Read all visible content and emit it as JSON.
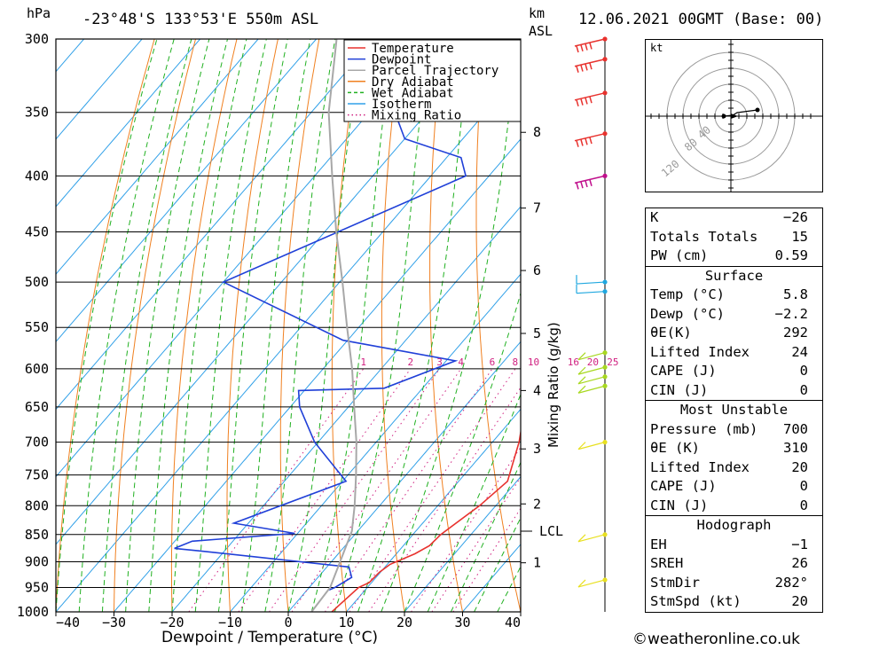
{
  "header": {
    "pressure_unit": "hPa",
    "location": "-23°48'S 133°53'E 550m ASL",
    "height_unit_line1": "km",
    "height_unit_line2": "ASL",
    "datetime": "12.06.2021 00GMT (Base: 00)"
  },
  "chart_data": {
    "type": "line",
    "title": "",
    "xlabel": "Dewpoint / Temperature (°C)",
    "ylabel": "hPa",
    "x_ticks": [
      -40,
      -30,
      -20,
      -10,
      0,
      10,
      20,
      30,
      40
    ],
    "pressure_ticks": [
      300,
      350,
      400,
      450,
      500,
      550,
      600,
      650,
      700,
      750,
      800,
      850,
      900,
      950,
      1000
    ],
    "height_ticks_km": [
      {
        "label": "8",
        "p": 365
      },
      {
        "label": "7",
        "p": 428
      },
      {
        "label": "6",
        "p": 488
      },
      {
        "label": "5",
        "p": 557
      },
      {
        "label": "4",
        "p": 628
      },
      {
        "label": "3",
        "p": 710
      },
      {
        "label": "2",
        "p": 797
      },
      {
        "label": "1",
        "p": 902
      }
    ],
    "lcl_label": "LCL",
    "lcl_pressure": 844,
    "mixing_ratio_axis_label": "Mixing Ratio (g/kg)",
    "mixing_ratio_values": [
      "1",
      "2",
      "3",
      "4",
      "6",
      "8",
      "10",
      "16",
      "20",
      "25"
    ],
    "legend": {
      "position": "top-right",
      "entries": [
        {
          "name": "Temperature",
          "color": "#e8322e",
          "style": "solid"
        },
        {
          "name": "Dewpoint",
          "color": "#2040d8",
          "style": "solid"
        },
        {
          "name": "Parcel Trajectory",
          "color": "#a8a8a8",
          "style": "solid"
        },
        {
          "name": "Dry Adiabat",
          "color": "#f08020",
          "style": "solid"
        },
        {
          "name": "Wet Adiabat",
          "color": "#20b020",
          "style": "dashed"
        },
        {
          "name": "Isotherm",
          "color": "#30a0e8",
          "style": "solid"
        },
        {
          "name": "Mixing Ratio",
          "color": "#d02080",
          "style": "dotted"
        }
      ]
    },
    "series": [
      {
        "name": "Temperature",
        "color": "#e8322e",
        "points": [
          [
            1000,
            7.5
          ],
          [
            950,
            8.5
          ],
          [
            940,
            9.6
          ],
          [
            920,
            9.8
          ],
          [
            905,
            10.5
          ],
          [
            885,
            13.2
          ],
          [
            870,
            14.5
          ],
          [
            850,
            14.8
          ],
          [
            800,
            17.2
          ],
          [
            760,
            18.4
          ],
          [
            700,
            14.6
          ],
          [
            650,
            10.4
          ],
          [
            610,
            6.8
          ],
          [
            580,
            5.8
          ],
          [
            560,
            5.8
          ],
          [
            500,
            -0.4
          ],
          [
            450,
            -7.4
          ],
          [
            400,
            -16.2
          ],
          [
            385,
            -16.8
          ],
          [
            375,
            -18.5
          ],
          [
            350,
            -22.5
          ],
          [
            300,
            -32.0
          ]
        ]
      },
      {
        "name": "Dewpoint",
        "color": "#2040d8",
        "points": [
          [
            955,
            3.8
          ],
          [
            950,
            4.4
          ],
          [
            930,
            5.8
          ],
          [
            910,
            3.8
          ],
          [
            880,
            -24.0
          ],
          [
            875,
            -29.0
          ],
          [
            862,
            -27.0
          ],
          [
            848,
            -10.5
          ],
          [
            830,
            -22.5
          ],
          [
            760,
            -9.4
          ],
          [
            700,
            -20.6
          ],
          [
            650,
            -28.4
          ],
          [
            628,
            -31.0
          ],
          [
            625,
            -16.6
          ],
          [
            590,
            -8.4
          ],
          [
            565,
            -30.8
          ],
          [
            500,
            -60.0
          ],
          [
            400,
            -34.0
          ],
          [
            385,
            -37.5
          ],
          [
            370,
            -50.0
          ],
          [
            350,
            -55.6
          ],
          [
            300,
            -64.5
          ]
        ]
      },
      {
        "name": "Parcel Trajectory",
        "color": "#a8a8a8",
        "points": [
          [
            1000,
            4.0
          ],
          [
            950,
            3.6
          ],
          [
            900,
            1.5
          ],
          [
            844,
            -1.0
          ],
          [
            800,
            -4.3
          ],
          [
            750,
            -8.6
          ],
          [
            700,
            -13.4
          ],
          [
            650,
            -19.0
          ],
          [
            600,
            -25.0
          ],
          [
            550,
            -32.0
          ],
          [
            500,
            -39.5
          ],
          [
            450,
            -48.0
          ],
          [
            400,
            -57.0
          ],
          [
            350,
            -67.0
          ],
          [
            300,
            -76.5
          ]
        ]
      }
    ],
    "wind_barbs": [
      {
        "p": 300,
        "color": "#e8322e"
      },
      {
        "p": 313,
        "color": "#e8322e"
      },
      {
        "p": 336,
        "color": "#e8322e"
      },
      {
        "p": 366,
        "color": "#e8322e"
      },
      {
        "p": 400,
        "color": "#c0108c"
      },
      {
        "p": 500,
        "color": "#20a8e0"
      },
      {
        "p": 510,
        "color": "#20a8e0"
      },
      {
        "p": 580,
        "color": "#a8d820"
      },
      {
        "p": 598,
        "color": "#a8d820"
      },
      {
        "p": 610,
        "color": "#a8d820"
      },
      {
        "p": 622,
        "color": "#a8d820"
      },
      {
        "p": 700,
        "color": "#e8e020"
      },
      {
        "p": 850,
        "color": "#e8e020"
      },
      {
        "p": 935,
        "color": "#e8e020"
      }
    ]
  },
  "hodograph": {
    "unit": "kt",
    "ring_labels": [
      "40",
      "80",
      "120"
    ]
  },
  "indices": {
    "rows": [
      {
        "label": "K",
        "value": "-26"
      },
      {
        "label": "Totals Totals",
        "value": "15"
      },
      {
        "label": "PW (cm)",
        "value": "0.59"
      }
    ]
  },
  "surface": {
    "title": "Surface",
    "rows": [
      {
        "label": "Temp (°C)",
        "value": "5.8"
      },
      {
        "label": "Dewp (°C)",
        "value": "-2.2"
      },
      {
        "label": "θE(K)",
        "value": "292"
      },
      {
        "label": "Lifted Index",
        "value": "24"
      },
      {
        "label": "CAPE (J)",
        "value": "0"
      },
      {
        "label": "CIN (J)",
        "value": "0"
      }
    ]
  },
  "most_unstable": {
    "title": "Most Unstable",
    "rows": [
      {
        "label": "Pressure (mb)",
        "value": "700"
      },
      {
        "label": "θE (K)",
        "value": "310"
      },
      {
        "label": "Lifted Index",
        "value": "20"
      },
      {
        "label": "CAPE (J)",
        "value": "0"
      },
      {
        "label": "CIN (J)",
        "value": "0"
      }
    ]
  },
  "hodograph_stats": {
    "title": "Hodograph",
    "rows": [
      {
        "label": "EH",
        "value": "-1"
      },
      {
        "label": "SREH",
        "value": "26"
      },
      {
        "label": "StmDir",
        "value": "282°"
      },
      {
        "label": "StmSpd (kt)",
        "value": "20"
      }
    ]
  },
  "footer": {
    "credit": "©weatheronline.co.uk"
  }
}
